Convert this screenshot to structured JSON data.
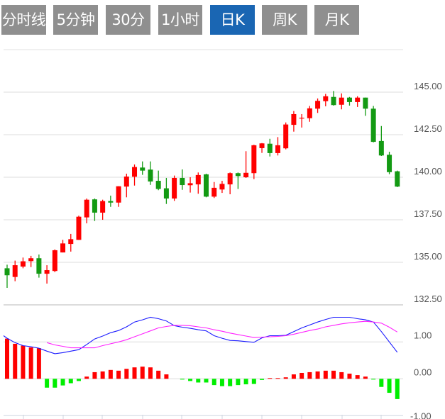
{
  "tabs": [
    {
      "label": "分时线",
      "active": false
    },
    {
      "label": "5分钟",
      "active": false
    },
    {
      "label": "30分钟",
      "active": false
    },
    {
      "label": "1小时",
      "active": false
    },
    {
      "label": "日K",
      "active": true
    },
    {
      "label": "周K",
      "active": false
    },
    {
      "label": "月K",
      "active": false
    }
  ],
  "colors": {
    "up": "#ff0000",
    "down": "#139a13",
    "hist_up": "#ff0000",
    "hist_down": "#00ee00",
    "dif": "#1a1aff",
    "dea": "#ff22ff",
    "active_tab": "#1a66b3",
    "tab": "#8f8f8f"
  },
  "chart_data": [
    {
      "type": "candlestick",
      "title": "",
      "ylim": [
        132.5,
        147.5
      ],
      "yticks": [
        "145.00",
        "142.50",
        "140.00",
        "137.50",
        "135.00",
        "132.50"
      ],
      "ytick_values": [
        145,
        142.5,
        140,
        137.5,
        135,
        132.5
      ],
      "grid": true,
      "candles": [
        [
          134.65,
          134.86,
          133.5,
          134.24
        ],
        [
          134.14,
          135.1,
          133.89,
          134.83
        ],
        [
          134.75,
          135.28,
          134.65,
          135.06
        ],
        [
          135.07,
          135.38,
          134.72,
          135.24
        ],
        [
          135.24,
          135.46,
          134.1,
          134.33
        ],
        [
          134.33,
          134.83,
          133.75,
          134.54
        ],
        [
          134.49,
          135.76,
          134.42,
          135.71
        ],
        [
          135.58,
          136.32,
          135.58,
          136.11
        ],
        [
          136.08,
          136.67,
          135.63,
          136.36
        ],
        [
          136.32,
          137.74,
          136.32,
          137.68
        ],
        [
          137.64,
          138.75,
          137.29,
          138.68
        ],
        [
          138.7,
          138.75,
          137.43,
          137.92
        ],
        [
          137.92,
          138.68,
          137.5,
          138.6
        ],
        [
          138.6,
          138.92,
          138.26,
          138.51
        ],
        [
          138.51,
          139.47,
          138.26,
          139.47
        ],
        [
          139.45,
          140.21,
          138.82,
          140.04
        ],
        [
          140.03,
          140.75,
          139.51,
          140.6
        ],
        [
          140.57,
          140.93,
          140.14,
          140.39
        ],
        [
          140.45,
          140.93,
          139.55,
          139.75
        ],
        [
          139.79,
          140.39,
          139.24,
          139.31
        ],
        [
          139.35,
          139.96,
          138.43,
          138.75
        ],
        [
          138.75,
          140.1,
          138.61,
          139.96
        ],
        [
          139.96,
          140.46,
          139.26,
          139.54
        ],
        [
          139.53,
          140.0,
          139.1,
          139.65
        ],
        [
          139.58,
          140.28,
          139.03,
          140.13
        ],
        [
          140.17,
          140.21,
          138.82,
          138.86
        ],
        [
          138.86,
          139.72,
          138.78,
          139.38
        ],
        [
          139.28,
          139.79,
          139.08,
          139.61
        ],
        [
          139.58,
          140.28,
          139.0,
          140.24
        ],
        [
          140.24,
          140.28,
          139.31,
          140.07
        ],
        [
          140.0,
          141.53,
          139.96,
          140.26
        ],
        [
          140.24,
          141.91,
          139.89,
          141.88
        ],
        [
          141.71,
          142.01,
          141.43,
          141.99
        ],
        [
          141.97,
          142.26,
          141.22,
          141.42
        ],
        [
          141.42,
          142.36,
          141.28,
          141.88
        ],
        [
          141.7,
          143.22,
          141.64,
          143.1
        ],
        [
          143.08,
          143.89,
          142.68,
          143.71
        ],
        [
          143.46,
          143.71,
          142.92,
          143.5
        ],
        [
          143.47,
          144.19,
          143.26,
          144.05
        ],
        [
          144.03,
          144.63,
          143.78,
          144.49
        ],
        [
          144.47,
          144.9,
          144.17,
          144.76
        ],
        [
          144.72,
          145.07,
          144.21,
          144.24
        ],
        [
          144.26,
          144.93,
          143.99,
          144.68
        ],
        [
          144.68,
          144.72,
          144.21,
          144.42
        ],
        [
          144.42,
          144.76,
          144.13,
          144.68
        ],
        [
          144.68,
          144.68,
          143.61,
          144.03
        ],
        [
          144.03,
          144.19,
          142.05,
          142.08
        ],
        [
          142.13,
          143.01,
          141.25,
          141.28
        ],
        [
          141.32,
          141.5,
          140.18,
          140.3
        ],
        [
          140.35,
          140.39,
          139.42,
          139.45
        ]
      ],
      "candle_format": [
        "open",
        "high",
        "low",
        "close"
      ]
    },
    {
      "type": "macd",
      "ylim": [
        -1.0,
        2.0
      ],
      "yticks": [
        "1.00",
        "0.00",
        "-1.00"
      ],
      "ytick_values": [
        1,
        0,
        -1
      ],
      "histogram": [
        1.09,
        0.95,
        0.9,
        0.85,
        0.83,
        -0.24,
        -0.24,
        -0.18,
        -0.12,
        -0.06,
        0.06,
        0.18,
        0.2,
        0.24,
        0.22,
        0.27,
        0.31,
        0.33,
        0.31,
        0.22,
        0.12,
        0.0,
        -0.02,
        -0.06,
        -0.1,
        -0.1,
        -0.17,
        -0.2,
        -0.2,
        -0.17,
        -0.15,
        -0.14,
        -0.03,
        0.02,
        0.02,
        0.04,
        0.12,
        0.16,
        0.18,
        0.2,
        0.22,
        0.22,
        0.18,
        0.14,
        0.1,
        0.06,
        -0.02,
        -0.22,
        -0.38,
        -0.55
      ],
      "series": [
        {
          "name": "DIF",
          "values": [
            1.1,
            0.98,
            0.9,
            0.87,
            0.83,
            0.75,
            0.68,
            0.71,
            0.75,
            0.79,
            0.93,
            1.08,
            1.16,
            1.25,
            1.31,
            1.41,
            1.54,
            1.6,
            1.67,
            1.63,
            1.57,
            1.44,
            1.4,
            1.37,
            1.33,
            1.3,
            1.17,
            1.1,
            1.04,
            1.03,
            1.01,
            0.99,
            1.11,
            1.17,
            1.17,
            1.18,
            1.28,
            1.38,
            1.46,
            1.54,
            1.61,
            1.67,
            1.67,
            1.67,
            1.63,
            1.6,
            1.54,
            1.28,
            1.0,
            0.72
          ]
        },
        {
          "name": "DEA",
          "values": [
            null,
            null,
            null,
            null,
            null,
            0.98,
            0.92,
            0.88,
            0.84,
            0.84,
            0.84,
            0.84,
            0.9,
            0.95,
            1.0,
            1.06,
            1.14,
            1.22,
            1.3,
            1.38,
            1.42,
            1.45,
            1.45,
            1.44,
            1.41,
            1.38,
            1.33,
            1.29,
            1.24,
            1.2,
            1.16,
            1.12,
            1.13,
            1.14,
            1.15,
            1.17,
            1.21,
            1.26,
            1.31,
            1.35,
            1.41,
            1.45,
            1.49,
            1.52,
            1.54,
            1.56,
            1.54,
            1.51,
            1.4,
            1.27
          ]
        }
      ]
    }
  ]
}
